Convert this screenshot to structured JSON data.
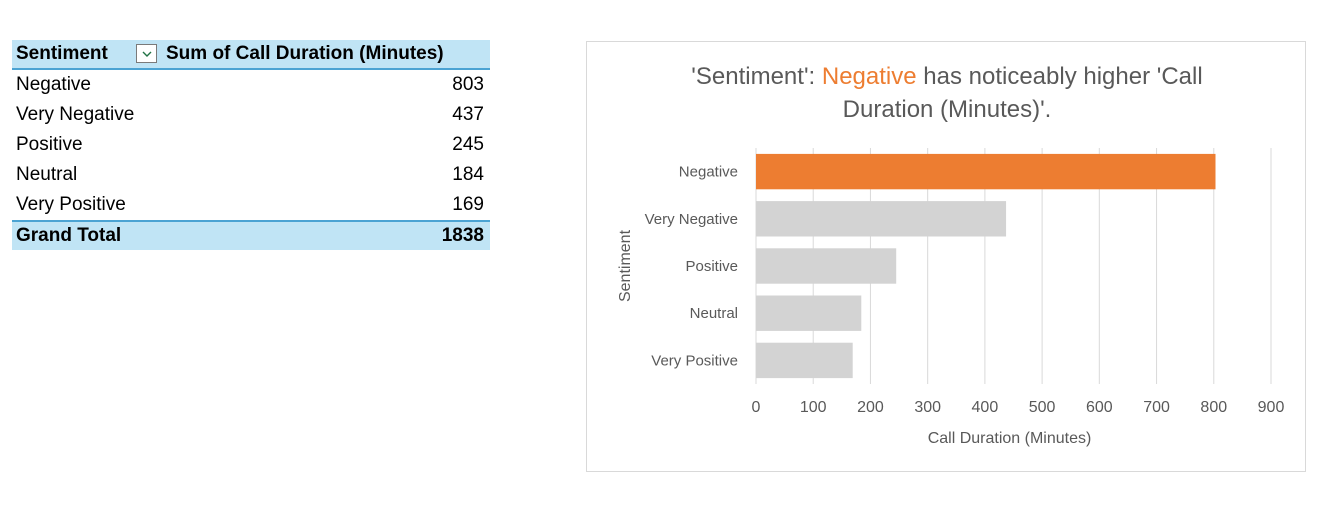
{
  "pivot": {
    "header": {
      "col1": "Sentiment",
      "col2": "Sum of Call Duration (Minutes)"
    },
    "rows": [
      {
        "label": "Negative",
        "value": "803"
      },
      {
        "label": "Very Negative",
        "value": "437"
      },
      {
        "label": "Positive",
        "value": "245"
      },
      {
        "label": "Neutral",
        "value": "184"
      },
      {
        "label": "Very Positive",
        "value": "169"
      }
    ],
    "total": {
      "label": "Grand Total",
      "value": "1838"
    }
  },
  "colors": {
    "highlight": "#ed7d31",
    "bar": "#d3d3d3",
    "grid": "#d9d9d9",
    "header_bg": "#c0e4f5"
  },
  "chart_data": {
    "type": "bar",
    "orientation": "horizontal",
    "title_parts": [
      "'Sentiment':",
      "Negative",
      "has noticeably higher 'Call",
      "Duration (Minutes)'."
    ],
    "categories": [
      "Negative",
      "Very Negative",
      "Positive",
      "Neutral",
      "Very Positive"
    ],
    "values": [
      803,
      437,
      245,
      184,
      169
    ],
    "highlight_category": "Negative",
    "xlabel": "Call Duration (Minutes)",
    "ylabel": "Sentiment",
    "xlim": [
      0,
      900
    ],
    "xticks": [
      "0",
      "100",
      "200",
      "300",
      "400",
      "500",
      "600",
      "700",
      "800",
      "900"
    ],
    "grid": true,
    "legend": "none"
  }
}
